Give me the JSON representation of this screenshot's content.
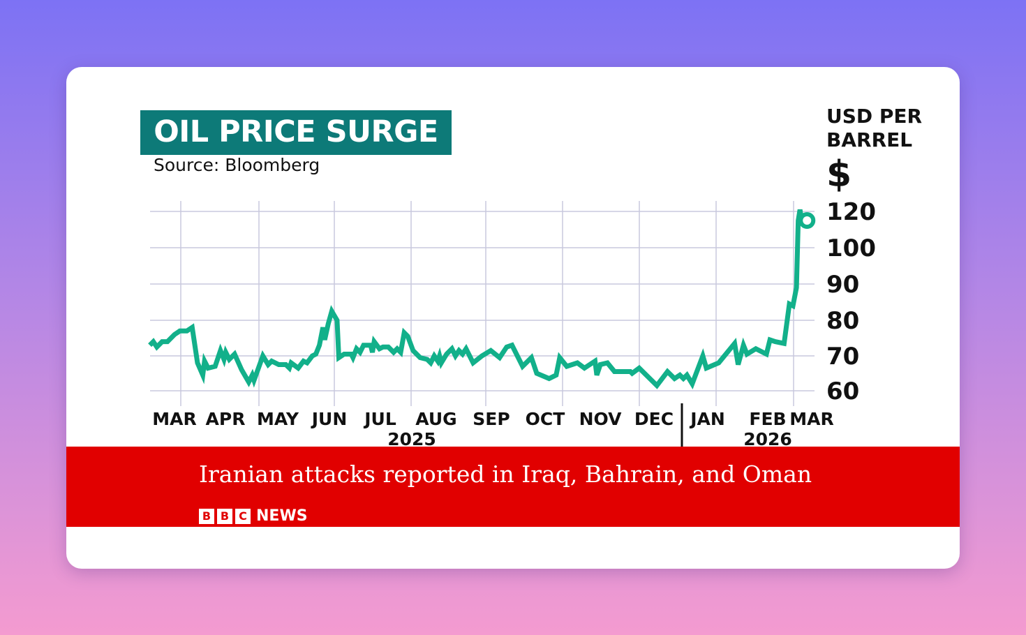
{
  "chart_data": {
    "type": "line",
    "title": "OIL PRICE SURGE",
    "subtitle": "Source: Bloomberg",
    "ylabel": "USD PER BARREL",
    "ylabel_symbol": "$",
    "y_ticks": [
      60,
      70,
      80,
      90,
      100,
      120
    ],
    "y_scale": "piecewise (equal spacing between ticks; 100 to 120 compressed)",
    "ylim": [
      60,
      122
    ],
    "x_ticks": [
      "MAR",
      "APR",
      "MAY",
      "JUN",
      "JUL",
      "AUG",
      "SEP",
      "OCT",
      "NOV",
      "DEC",
      "JAN",
      "FEB",
      "MAR"
    ],
    "x_year_labels": [
      "2025",
      "2026"
    ],
    "xlim": [
      "2025-03-01",
      "2026-03-10"
    ],
    "grid": true,
    "line_color": "#12b08a",
    "end_marker": "circle",
    "points": [
      [
        "2025-03-04",
        73
      ],
      [
        "2025-03-06",
        74
      ],
      [
        "2025-03-08",
        72.5
      ],
      [
        "2025-03-11",
        74
      ],
      [
        "2025-03-14",
        74
      ],
      [
        "2025-03-18",
        76
      ],
      [
        "2025-03-21",
        77
      ],
      [
        "2025-03-25",
        77
      ],
      [
        "2025-03-28",
        78
      ],
      [
        "2025-03-31",
        68
      ],
      [
        "2025-04-03",
        64.5
      ],
      [
        "2025-04-04",
        68.5
      ],
      [
        "2025-04-06",
        66.5
      ],
      [
        "2025-04-10",
        67
      ],
      [
        "2025-04-13",
        71.5
      ],
      [
        "2025-04-15",
        69
      ],
      [
        "2025-04-16",
        71
      ],
      [
        "2025-04-18",
        69
      ],
      [
        "2025-04-21",
        70.5
      ],
      [
        "2025-04-25",
        66
      ],
      [
        "2025-04-29",
        62.5
      ],
      [
        "2025-05-01",
        64.5
      ],
      [
        "2025-05-02",
        63
      ],
      [
        "2025-05-07",
        70
      ],
      [
        "2025-05-10",
        67.5
      ],
      [
        "2025-05-12",
        68.5
      ],
      [
        "2025-05-16",
        67.5
      ],
      [
        "2025-05-20",
        67.5
      ],
      [
        "2025-05-22",
        66.5
      ],
      [
        "2025-05-23",
        68
      ],
      [
        "2025-05-27",
        66.5
      ],
      [
        "2025-05-30",
        68.5
      ],
      [
        "2025-06-01",
        68
      ],
      [
        "2025-06-04",
        70
      ],
      [
        "2025-06-06",
        70.5
      ],
      [
        "2025-06-08",
        73
      ],
      [
        "2025-06-10",
        78
      ],
      [
        "2025-06-11",
        74.5
      ],
      [
        "2025-06-13",
        79
      ],
      [
        "2025-06-15",
        82.5
      ],
      [
        "2025-06-18",
        80
      ],
      [
        "2025-06-19",
        69.5
      ],
      [
        "2025-06-22",
        70.5
      ],
      [
        "2025-06-26",
        70.5
      ],
      [
        "2025-06-27",
        69.5
      ],
      [
        "2025-06-29",
        72
      ],
      [
        "2025-07-01",
        71
      ],
      [
        "2025-07-03",
        73
      ],
      [
        "2025-07-07",
        73
      ],
      [
        "2025-07-08",
        71
      ],
      [
        "2025-07-09",
        74
      ],
      [
        "2025-07-12",
        72
      ],
      [
        "2025-07-14",
        72.5
      ],
      [
        "2025-07-17",
        72.5
      ],
      [
        "2025-07-20",
        71
      ],
      [
        "2025-07-22",
        72
      ],
      [
        "2025-07-24",
        71
      ],
      [
        "2025-07-26",
        76.5
      ],
      [
        "2025-07-28",
        75.5
      ],
      [
        "2025-07-31",
        71.5
      ],
      [
        "2025-08-04",
        69.5
      ],
      [
        "2025-08-08",
        69
      ],
      [
        "2025-08-10",
        68
      ],
      [
        "2025-08-12",
        70
      ],
      [
        "2025-08-14",
        68.5
      ],
      [
        "2025-08-15",
        70
      ],
      [
        "2025-08-16",
        68
      ],
      [
        "2025-08-19",
        70.5
      ],
      [
        "2025-08-22",
        72
      ],
      [
        "2025-08-24",
        70
      ],
      [
        "2025-08-26",
        71.5
      ],
      [
        "2025-08-28",
        70.5
      ],
      [
        "2025-08-30",
        72
      ],
      [
        "2025-09-03",
        68
      ],
      [
        "2025-09-08",
        70
      ],
      [
        "2025-09-13",
        71.5
      ],
      [
        "2025-09-18",
        69.5
      ],
      [
        "2025-09-22",
        72.5
      ],
      [
        "2025-09-25",
        73
      ],
      [
        "2025-10-01",
        67
      ],
      [
        "2025-10-06",
        69.5
      ],
      [
        "2025-10-09",
        65
      ],
      [
        "2025-10-16",
        63.5
      ],
      [
        "2025-10-20",
        64.5
      ],
      [
        "2025-10-22",
        69.5
      ],
      [
        "2025-10-26",
        67
      ],
      [
        "2025-11-01",
        68
      ],
      [
        "2025-11-05",
        66.5
      ],
      [
        "2025-11-11",
        68.5
      ],
      [
        "2025-11-12",
        64.5
      ],
      [
        "2025-11-14",
        67.5
      ],
      [
        "2025-11-18",
        68
      ],
      [
        "2025-11-22",
        65.5
      ],
      [
        "2025-12-01",
        65.5
      ],
      [
        "2025-12-02",
        65
      ],
      [
        "2025-12-06",
        66.5
      ],
      [
        "2025-12-16",
        61.5
      ],
      [
        "2025-12-22",
        65.5
      ],
      [
        "2025-12-26",
        63.5
      ],
      [
        "2025-12-29",
        64.5
      ],
      [
        "2025-12-31",
        63.5
      ],
      [
        "2026-01-02",
        64.5
      ],
      [
        "2026-01-05",
        62
      ],
      [
        "2026-01-11",
        70
      ],
      [
        "2026-01-13",
        66.5
      ],
      [
        "2026-01-20",
        68
      ],
      [
        "2026-01-29",
        73.5
      ],
      [
        "2026-01-31",
        67.5
      ],
      [
        "2026-02-03",
        73
      ],
      [
        "2026-02-05",
        70.5
      ],
      [
        "2026-02-10",
        72
      ],
      [
        "2026-02-16",
        70.5
      ],
      [
        "2026-02-18",
        74.5
      ],
      [
        "2026-02-21",
        74
      ],
      [
        "2026-02-26",
        73.5
      ],
      [
        "2026-03-01",
        84.5
      ],
      [
        "2026-03-03",
        84
      ],
      [
        "2026-03-05",
        89
      ],
      [
        "2026-03-06",
        115
      ],
      [
        "2026-03-07",
        121
      ],
      [
        "2026-03-08",
        115
      ],
      [
        "2026-03-09",
        115
      ]
    ]
  },
  "banner": {
    "headline": "Iranian attacks reported in Iraq, Bahrain, and Oman",
    "logo_letters": [
      "B",
      "B",
      "C"
    ],
    "logo_word": "NEWS",
    "color": "#e10000"
  }
}
